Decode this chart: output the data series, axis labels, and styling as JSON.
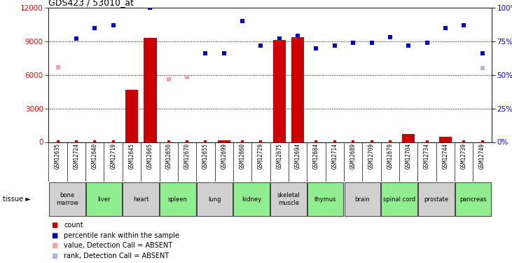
{
  "title": "GDS423 / 53010_at",
  "samples": [
    "GSM12635",
    "GSM12724",
    "GSM12640",
    "GSM12719",
    "GSM12645",
    "GSM12665",
    "GSM12650",
    "GSM12670",
    "GSM12655",
    "GSM12699",
    "GSM12660",
    "GSM12729",
    "GSM12675",
    "GSM12694",
    "GSM12684",
    "GSM12714",
    "GSM12689",
    "GSM12709",
    "GSM12679",
    "GSM12704",
    "GSM12734",
    "GSM12744",
    "GSM12739",
    "GSM12749"
  ],
  "tissues": [
    {
      "name": "bone\nmarrow",
      "samples": [
        "GSM12635",
        "GSM12724"
      ],
      "color": "#d0d0d0"
    },
    {
      "name": "liver",
      "samples": [
        "GSM12640",
        "GSM12719"
      ],
      "color": "#90ee90"
    },
    {
      "name": "heart",
      "samples": [
        "GSM12645",
        "GSM12665"
      ],
      "color": "#d0d0d0"
    },
    {
      "name": "spleen",
      "samples": [
        "GSM12650",
        "GSM12670"
      ],
      "color": "#90ee90"
    },
    {
      "name": "lung",
      "samples": [
        "GSM12655",
        "GSM12699"
      ],
      "color": "#d0d0d0"
    },
    {
      "name": "kidney",
      "samples": [
        "GSM12660",
        "GSM12729"
      ],
      "color": "#90ee90"
    },
    {
      "name": "skeletal\nmuscle",
      "samples": [
        "GSM12675",
        "GSM12694"
      ],
      "color": "#d0d0d0"
    },
    {
      "name": "thymus",
      "samples": [
        "GSM12684",
        "GSM12714"
      ],
      "color": "#90ee90"
    },
    {
      "name": "brain",
      "samples": [
        "GSM12689",
        "GSM12709"
      ],
      "color": "#d0d0d0"
    },
    {
      "name": "spinal cord",
      "samples": [
        "GSM12679",
        "GSM12704"
      ],
      "color": "#90ee90"
    },
    {
      "name": "prostate",
      "samples": [
        "GSM12734",
        "GSM12744"
      ],
      "color": "#d0d0d0"
    },
    {
      "name": "pancreas",
      "samples": [
        "GSM12739",
        "GSM12749"
      ],
      "color": "#90ee90"
    }
  ],
  "bar_values": {
    "GSM12635": 0,
    "GSM12724": 0,
    "GSM12640": 0,
    "GSM12719": 0,
    "GSM12645": 4700,
    "GSM12665": 9300,
    "GSM12650": 0,
    "GSM12670": 0,
    "GSM12655": 0,
    "GSM12699": 150,
    "GSM12660": 0,
    "GSM12729": 0,
    "GSM12675": 9100,
    "GSM12694": 9400,
    "GSM12684": 0,
    "GSM12714": 0,
    "GSM12689": 0,
    "GSM12709": 0,
    "GSM12679": 0,
    "GSM12704": 700,
    "GSM12734": 0,
    "GSM12744": 500,
    "GSM12739": 0,
    "GSM12749": 0
  },
  "rank_values_pct": {
    "GSM12635": null,
    "GSM12724": 77,
    "GSM12640": 85,
    "GSM12719": 87,
    "GSM12645": null,
    "GSM12665": 100,
    "GSM12650": null,
    "GSM12670": null,
    "GSM12655": 66,
    "GSM12699": 66,
    "GSM12660": 90,
    "GSM12729": 72,
    "GSM12675": 77,
    "GSM12694": 79,
    "GSM12684": 70,
    "GSM12714": 72,
    "GSM12689": 74,
    "GSM12709": 74,
    "GSM12679": 78,
    "GSM12704": 72,
    "GSM12734": 74,
    "GSM12744": 85,
    "GSM12739": 87,
    "GSM12749": 66
  },
  "absent_value": {
    "GSM12635": 6700,
    "GSM12650": 5600,
    "GSM12670": 5800
  },
  "absent_rank_pct": {
    "GSM12749": 55
  },
  "ylim_left": [
    0,
    12000
  ],
  "ylim_right": [
    0,
    100
  ],
  "yticks_left": [
    0,
    3000,
    6000,
    9000,
    12000
  ],
  "yticks_right": [
    0,
    25,
    50,
    75,
    100
  ],
  "bar_color": "#cc0000",
  "rank_color": "#0000cc",
  "absent_value_color": "#f4a4a4",
  "absent_rank_color": "#b0b8d8",
  "grid_color": "#000000",
  "background_color": "#ffffff",
  "xlab_bg": "#d4d4d4",
  "legend_items": [
    {
      "label": "count",
      "color": "#cc0000"
    },
    {
      "label": "percentile rank within the sample",
      "color": "#0000cc"
    },
    {
      "label": "value, Detection Call = ABSENT",
      "color": "#f4a4a4"
    },
    {
      "label": "rank, Detection Call = ABSENT",
      "color": "#b0b8d8"
    }
  ]
}
